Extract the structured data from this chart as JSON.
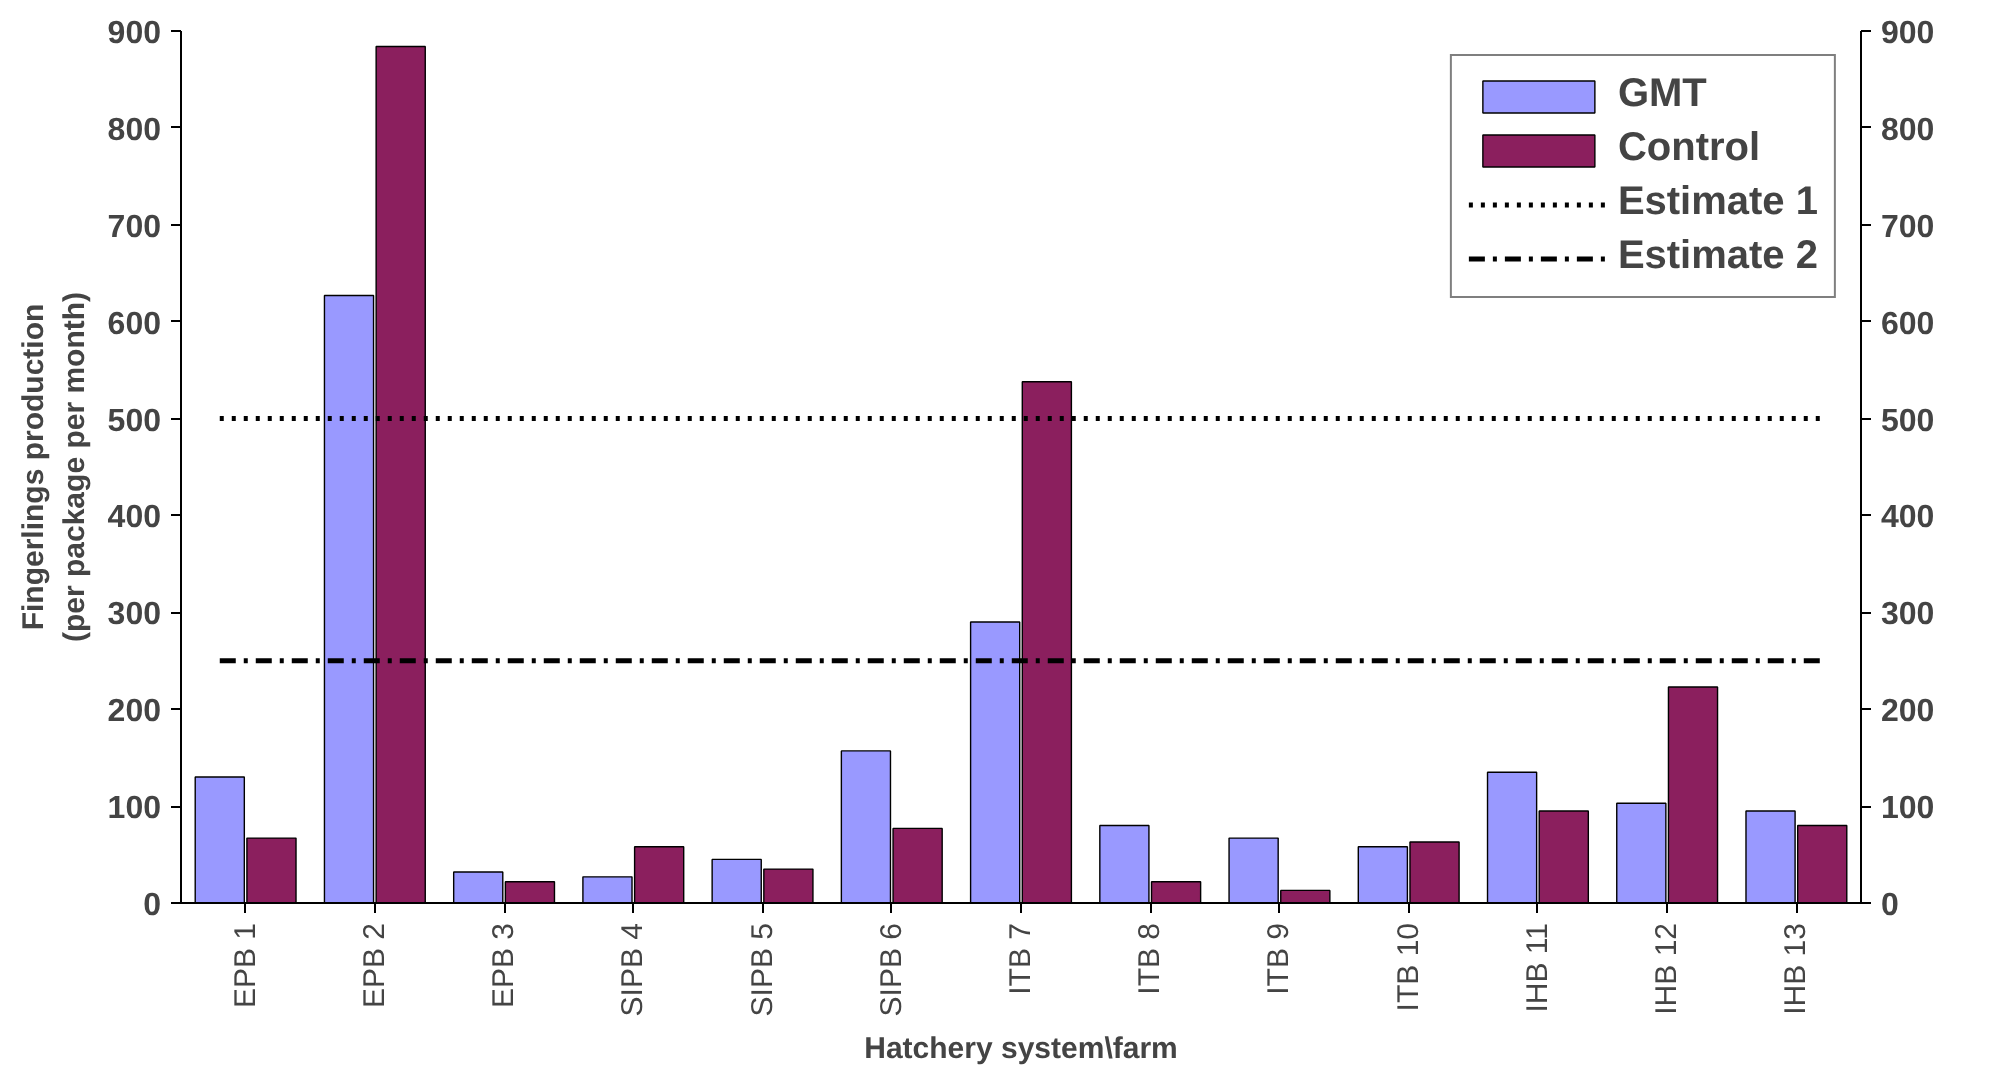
{
  "chart_data": {
    "type": "bar",
    "xlabel": "Hatchery system\\farm",
    "ylabel": "Fingerlings production\n(per package per month)",
    "categories": [
      "EPB 1",
      "EPB 2",
      "EPB 3",
      "SIPB 4",
      "SIPB 5",
      "SIPB 6",
      "ITB 7",
      "ITB 8",
      "ITB 9",
      "ITB 10",
      "IHB 11",
      "IHB 12",
      "IHB 13"
    ],
    "series": [
      {
        "name": "GMT",
        "color": "#9999ff",
        "values": [
          130,
          627,
          32,
          27,
          45,
          157,
          290,
          80,
          67,
          58,
          135,
          103,
          95
        ]
      },
      {
        "name": "Control",
        "color": "#8b1f5e",
        "values": [
          67,
          884,
          22,
          58,
          35,
          77,
          538,
          22,
          13,
          63,
          95,
          223,
          80
        ]
      }
    ],
    "ref_lines": [
      {
        "axis": "y",
        "value": 500,
        "label": "Estimate 1",
        "color": "#000000",
        "line_style": "dotted"
      },
      {
        "axis": "y",
        "value": 250,
        "label": "Estimate 2",
        "color": "#000000",
        "line_style": "dashdot"
      }
    ],
    "ylim": [
      0,
      900
    ],
    "yticks": [
      0,
      100,
      200,
      300,
      400,
      500,
      600,
      700,
      800,
      900
    ],
    "y2lim": [
      0,
      900
    ],
    "y2ticks": [
      0,
      100,
      200,
      300,
      400,
      500,
      600,
      700,
      800,
      900
    ],
    "grid": false,
    "legend": "top right"
  }
}
